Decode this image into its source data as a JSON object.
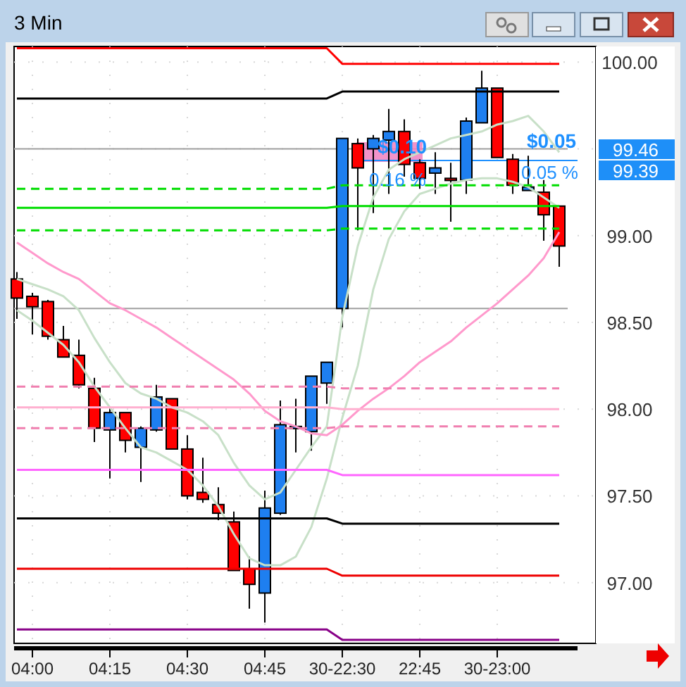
{
  "chart_data": {
    "type": "candlestick",
    "title": "3 Min",
    "categories": [
      null,
      "04:00",
      null,
      null,
      null,
      null,
      "04:15",
      null,
      null,
      null,
      null,
      "04:30",
      null,
      null,
      null,
      null,
      "04:45",
      null,
      null,
      null,
      null,
      "30-22:30",
      null,
      null,
      null,
      null,
      "22:45",
      null,
      null,
      null,
      null,
      "30-23:00",
      null,
      null,
      null,
      null
    ],
    "ylim": [
      96.65,
      100.09
    ],
    "yticks": [
      {
        "value": 97,
        "label": "97.00"
      },
      {
        "value": 97.5,
        "label": "97.50"
      },
      {
        "value": 98,
        "label": "98.00"
      },
      {
        "value": 98.5,
        "label": "98.50"
      },
      {
        "value": 99,
        "label": "99.00"
      },
      {
        "value": 99.5,
        "label": null
      },
      {
        "value": 100,
        "label": "100.00"
      }
    ],
    "grid": true,
    "series": [
      {
        "type": "line",
        "color": "#c8e0c8",
        "values": [
          98.75,
          98.72,
          98.69,
          98.65,
          98.57,
          98.41,
          98.27,
          98.15,
          98.09,
          98.06,
          98.01,
          97.98,
          97.93,
          97.85,
          97.69,
          97.56,
          97.48,
          97.52,
          97.65,
          97.78,
          97.9,
          98.53,
          98.94,
          99.22,
          99.38,
          99.44,
          99.48,
          99.52,
          99.56,
          99.58,
          99.6,
          99.64,
          99.66,
          99.69,
          99.6,
          99.48
        ]
      },
      {
        "type": "line",
        "color": "#c8e0c8",
        "values": [
          98.57,
          98.51,
          98.44,
          98.37,
          98.27,
          98.13,
          98.01,
          97.89,
          97.78,
          97.75,
          97.7,
          97.65,
          97.56,
          97.44,
          97.28,
          97.14,
          97.1,
          97.1,
          97.15,
          97.32,
          97.6,
          97.95,
          98.25,
          98.69,
          98.98,
          99.14,
          99.24,
          99.27,
          99.3,
          99.32,
          99.33,
          99.33,
          99.31,
          99.28,
          99.22,
          99.16
        ]
      },
      {
        "type": "line",
        "color": "#ff99cc",
        "values": [
          98.96,
          98.9,
          98.84,
          98.79,
          98.75,
          98.68,
          98.61,
          98.57,
          98.52,
          98.47,
          98.41,
          98.35,
          98.29,
          98.23,
          98.17,
          98.09,
          97.99,
          97.93,
          97.9,
          97.86,
          97.85,
          97.91,
          97.99,
          98.06,
          98.12,
          98.19,
          98.27,
          98.33,
          98.39,
          98.47,
          98.54,
          98.61,
          98.69,
          98.77,
          98.87,
          99.02
        ]
      },
      {
        "type": "line",
        "color": "#ff0000",
        "values": [
          100.08,
          100.08,
          100.08,
          100.08,
          100.08,
          100.08,
          100.08,
          100.08,
          100.08,
          100.08,
          100.08,
          100.08,
          100.08,
          100.08,
          100.08,
          100.08,
          100.08,
          100.08,
          100.08,
          100.08,
          100.08,
          99.99,
          99.99,
          99.99,
          99.99,
          99.99,
          99.99,
          99.99,
          99.99,
          99.99,
          99.99,
          99.99,
          99.99,
          99.99,
          99.99,
          99.99
        ]
      },
      {
        "type": "line",
        "color": "#000000",
        "values": [
          99.79,
          99.79,
          99.79,
          99.79,
          99.79,
          99.79,
          99.79,
          99.79,
          99.79,
          99.79,
          99.79,
          99.79,
          99.79,
          99.79,
          99.79,
          99.79,
          99.79,
          99.79,
          99.79,
          99.79,
          99.79,
          99.83,
          99.83,
          99.83,
          99.83,
          99.83,
          99.83,
          99.83,
          99.83,
          99.83,
          99.83,
          99.83,
          99.83,
          99.83,
          99.83,
          99.83
        ]
      },
      {
        "type": "line",
        "color": "#00dd00",
        "line_style": "dashed",
        "values": [
          99.27,
          99.27,
          99.27,
          99.27,
          99.27,
          99.27,
          99.27,
          99.27,
          99.27,
          99.27,
          99.27,
          99.27,
          99.27,
          99.27,
          99.27,
          99.27,
          99.27,
          99.27,
          99.27,
          99.27,
          99.27,
          99.29,
          99.29,
          99.29,
          99.29,
          99.29,
          99.29,
          99.29,
          99.29,
          99.29,
          99.29,
          99.29,
          99.29,
          99.29,
          99.29,
          99.29
        ]
      },
      {
        "type": "line",
        "color": "#00dd00",
        "values": [
          99.16,
          99.16,
          99.16,
          99.16,
          99.16,
          99.16,
          99.16,
          99.16,
          99.16,
          99.16,
          99.16,
          99.16,
          99.16,
          99.16,
          99.16,
          99.16,
          99.16,
          99.16,
          99.16,
          99.16,
          99.16,
          99.17,
          99.17,
          99.17,
          99.17,
          99.17,
          99.17,
          99.17,
          99.17,
          99.17,
          99.17,
          99.17,
          99.17,
          99.17,
          99.17,
          99.17
        ]
      },
      {
        "type": "line",
        "color": "#00dd00",
        "line_style": "dashed",
        "values": [
          99.03,
          99.03,
          99.03,
          99.03,
          99.03,
          99.03,
          99.03,
          99.03,
          99.03,
          99.03,
          99.03,
          99.03,
          99.03,
          99.03,
          99.03,
          99.03,
          99.03,
          99.03,
          99.03,
          99.03,
          99.03,
          99.04,
          99.04,
          99.04,
          99.04,
          99.04,
          99.04,
          99.04,
          99.04,
          99.04,
          99.04,
          99.04,
          99.04,
          99.04,
          99.04,
          99.04
        ]
      },
      {
        "type": "line",
        "color": "#f080b0",
        "line_style": "dashed",
        "values": [
          98.13,
          98.13,
          98.13,
          98.13,
          98.13,
          98.13,
          98.13,
          98.13,
          98.13,
          98.13,
          98.13,
          98.13,
          98.13,
          98.13,
          98.13,
          98.13,
          98.13,
          98.13,
          98.13,
          98.13,
          98.13,
          98.12,
          98.12,
          98.12,
          98.12,
          98.12,
          98.12,
          98.12,
          98.12,
          98.12,
          98.12,
          98.12,
          98.12,
          98.12,
          98.12,
          98.12
        ]
      },
      {
        "type": "line",
        "color": "#ffb0d0",
        "values": [
          98.01,
          98.01,
          98.01,
          98.01,
          98.01,
          98.01,
          98.01,
          98.01,
          98.01,
          98.01,
          98.01,
          98.01,
          98.01,
          98.01,
          98.01,
          98.01,
          98.01,
          98.01,
          98.01,
          98.01,
          98.01,
          98.0,
          98.0,
          98.0,
          98.0,
          98.0,
          98.0,
          98.0,
          98.0,
          98.0,
          98.0,
          98.0,
          98.0,
          98.0,
          98.0,
          98.0
        ]
      },
      {
        "type": "line",
        "color": "#f080b0",
        "line_style": "dashed",
        "values": [
          97.89,
          97.89,
          97.89,
          97.89,
          97.89,
          97.89,
          97.89,
          97.89,
          97.89,
          97.89,
          97.89,
          97.89,
          97.89,
          97.89,
          97.89,
          97.89,
          97.89,
          97.89,
          97.89,
          97.89,
          97.89,
          97.9,
          97.9,
          97.9,
          97.9,
          97.9,
          97.9,
          97.9,
          97.9,
          97.9,
          97.9,
          97.9,
          97.9,
          97.9,
          97.9,
          97.9
        ]
      },
      {
        "type": "line",
        "color": "#ff66ff",
        "values": [
          97.65,
          97.65,
          97.65,
          97.65,
          97.65,
          97.65,
          97.65,
          97.65,
          97.65,
          97.65,
          97.65,
          97.65,
          97.65,
          97.65,
          97.65,
          97.65,
          97.65,
          97.65,
          97.65,
          97.65,
          97.65,
          97.62,
          97.62,
          97.62,
          97.62,
          97.62,
          97.62,
          97.62,
          97.62,
          97.62,
          97.62,
          97.62,
          97.62,
          97.62,
          97.62,
          97.62
        ]
      },
      {
        "type": "line",
        "color": "#000000",
        "values": [
          97.37,
          97.37,
          97.37,
          97.37,
          97.37,
          97.37,
          97.37,
          97.37,
          97.37,
          97.37,
          97.37,
          97.37,
          97.37,
          97.37,
          97.37,
          97.37,
          97.37,
          97.37,
          97.37,
          97.37,
          97.37,
          97.34,
          97.34,
          97.34,
          97.34,
          97.34,
          97.34,
          97.34,
          97.34,
          97.34,
          97.34,
          97.34,
          97.34,
          97.34,
          97.34,
          97.34
        ]
      },
      {
        "type": "line",
        "color": "#ee0000",
        "values": [
          97.08,
          97.08,
          97.08,
          97.08,
          97.08,
          97.08,
          97.08,
          97.08,
          97.08,
          97.08,
          97.08,
          97.08,
          97.08,
          97.08,
          97.08,
          97.08,
          97.08,
          97.08,
          97.08,
          97.08,
          97.08,
          97.04,
          97.04,
          97.04,
          97.04,
          97.04,
          97.04,
          97.04,
          97.04,
          97.04,
          97.04,
          97.04,
          97.04,
          97.04,
          97.04,
          97.04
        ]
      },
      {
        "type": "line",
        "color": "#880088",
        "values": [
          96.73,
          96.73,
          96.73,
          96.73,
          96.73,
          96.73,
          96.73,
          96.73,
          96.73,
          96.73,
          96.73,
          96.73,
          96.73,
          96.73,
          96.73,
          96.73,
          96.73,
          96.73,
          96.73,
          96.73,
          96.73,
          96.67,
          96.67,
          96.67,
          96.67,
          96.67,
          96.67,
          96.67,
          96.67,
          96.67,
          96.67,
          96.67,
          96.67,
          96.67,
          96.67,
          96.67
        ]
      }
    ],
    "colors": [
      "#ff0000",
      "#ff0000",
      "#ff0000",
      "#ff0000",
      "#ff0000",
      "#ff0000",
      "#1e7ff0",
      "#ff0000",
      "#1e7ff0",
      "#1e7ff0",
      "#ff0000",
      "#ff0000",
      "#ff0000",
      "#ff0000",
      "#ff0000",
      "#ff0000",
      "#1e7ff0",
      "#1e7ff0",
      "#1e7ff0",
      "#1e7ff0",
      "#1e7ff0",
      "#1e7ff0",
      "#ff0000",
      "#1e7ff0",
      "#1e7ff0",
      "#ff0000",
      "#ff0000",
      "#1e7ff0",
      "#ff0000",
      "#1e7ff0",
      "#1e7ff0",
      "#ff0000",
      "#ff0000",
      "#1e7ff0",
      "#ff0000",
      "#ff0000"
    ],
    "ohlc": [
      [
        98.75,
        98.79,
        98.52,
        98.64
      ],
      [
        98.65,
        98.67,
        98.43,
        98.59
      ],
      [
        98.62,
        98.63,
        98.4,
        98.42
      ],
      [
        98.4,
        98.48,
        98.3,
        98.3
      ],
      [
        98.31,
        98.4,
        98.12,
        98.14
      ],
      [
        98.12,
        98.18,
        97.81,
        97.89
      ],
      [
        97.88,
        98.01,
        97.6,
        97.98
      ],
      [
        97.98,
        97.98,
        97.75,
        97.82
      ],
      [
        97.78,
        97.9,
        97.58,
        97.89
      ],
      [
        97.88,
        98.14,
        97.87,
        98.07
      ],
      [
        98.06,
        98.06,
        97.77,
        97.77
      ],
      [
        97.77,
        97.85,
        97.48,
        97.5
      ],
      [
        97.52,
        97.72,
        97.46,
        97.48
      ],
      [
        97.45,
        97.55,
        97.36,
        97.4
      ],
      [
        97.35,
        97.41,
        97.07,
        97.07
      ],
      [
        97.08,
        97.15,
        96.85,
        96.99
      ],
      [
        96.94,
        97.53,
        96.77,
        97.43
      ],
      [
        97.4,
        98.05,
        97.39,
        97.91
      ],
      [
        97.89,
        98.06,
        97.75,
        97.9
      ],
      [
        97.87,
        98.19,
        97.76,
        98.19
      ],
      [
        98.15,
        98.27,
        98.03,
        98.27
      ],
      [
        98.58,
        99.56,
        98.47,
        99.56
      ],
      [
        99.53,
        99.56,
        99.03,
        99.39
      ],
      [
        99.5,
        99.58,
        99.13,
        99.56
      ],
      [
        99.55,
        99.73,
        99.24,
        99.6
      ],
      [
        99.6,
        99.67,
        99.34,
        99.41
      ],
      [
        99.42,
        99.44,
        99.27,
        99.33
      ],
      [
        99.36,
        99.48,
        99.24,
        99.39
      ],
      [
        99.33,
        99.42,
        99.08,
        99.32
      ],
      [
        99.32,
        99.68,
        99.24,
        99.66
      ],
      [
        99.65,
        99.95,
        99.65,
        99.85
      ],
      [
        99.85,
        99.85,
        99.45,
        99.45
      ],
      [
        99.44,
        99.47,
        99.24,
        99.29
      ],
      [
        99.26,
        99.46,
        99.26,
        99.28
      ],
      [
        99.25,
        99.32,
        98.97,
        99.12
      ],
      [
        99.17,
        99.17,
        98.82,
        98.94
      ]
    ],
    "ref_lines": [
      {
        "axis": "y",
        "value": 99.5,
        "color": "#a0a0a0"
      },
      {
        "axis": "y",
        "value": 98.58,
        "color": "#a0a0a0"
      }
    ],
    "annotations": [
      {
        "text": "$0.10",
        "y": 99.44
      },
      "0.16 %",
      "$0.05",
      "0.05 %",
      "99.46",
      "99.39"
    ]
  }
}
